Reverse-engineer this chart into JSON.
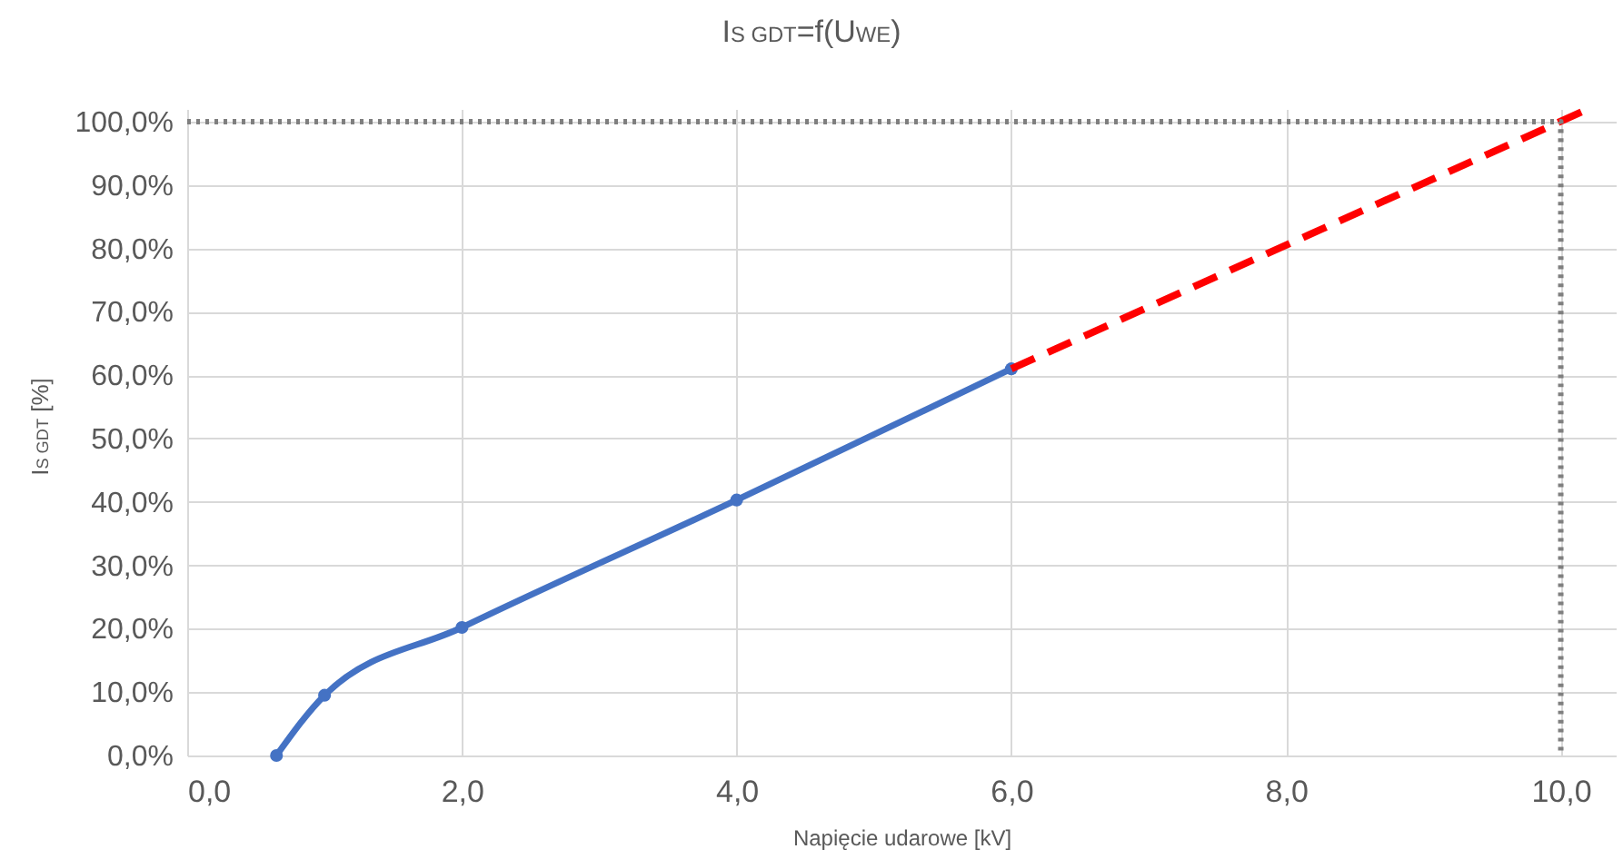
{
  "chart_data": {
    "type": "line",
    "title": "I$_{S GDT}$=f(U$_{WE}$)",
    "xlabel": "Napięcie udarowe [kV]",
    "ylabel": "I$_{S GDT}$ [%]",
    "series": [
      {
        "color": "#4472c4",
        "x": [
          0.65,
          1.0,
          2.0,
          4.0,
          6.0
        ],
        "values": [
          0,
          9.5,
          20.2,
          40.3,
          61.0
        ],
        "marker": "circle",
        "line_style": "solid"
      },
      {
        "color": "#ff0000",
        "x": [
          6.0,
          10.2
        ],
        "values": [
          61.0,
          102
        ],
        "marker": "none",
        "line_style": "dashed"
      },
      {
        "color": "#7f7f7f",
        "x": [
          0,
          10,
          10
        ],
        "values": [
          100,
          100,
          0
        ],
        "marker": "none",
        "line_style": "dotted"
      }
    ],
    "xlim": [
      0,
      10.4
    ],
    "ylim": [
      0,
      102
    ],
    "xticks": [
      {
        "value": 0,
        "label": "0,0"
      },
      {
        "value": 2,
        "label": "2,0"
      },
      {
        "value": 4,
        "label": "4,0"
      },
      {
        "value": 6,
        "label": "6,0"
      },
      {
        "value": 8,
        "label": "8,0"
      },
      {
        "value": 10,
        "label": "10,0"
      }
    ],
    "yticks": [
      {
        "value": 0,
        "label": "0,0%"
      },
      {
        "value": 10,
        "label": "10,0%"
      },
      {
        "value": 20,
        "label": "20,0%"
      },
      {
        "value": 30,
        "label": "30,0%"
      },
      {
        "value": 40,
        "label": "40,0%"
      },
      {
        "value": 50,
        "label": "50,0%"
      },
      {
        "value": 60,
        "label": "60,0%"
      },
      {
        "value": 70,
        "label": "70,0%"
      },
      {
        "value": 80,
        "label": "80,0%"
      },
      {
        "value": 90,
        "label": "90,0%"
      },
      {
        "value": 100,
        "label": "100,0%"
      }
    ],
    "grid": true
  }
}
